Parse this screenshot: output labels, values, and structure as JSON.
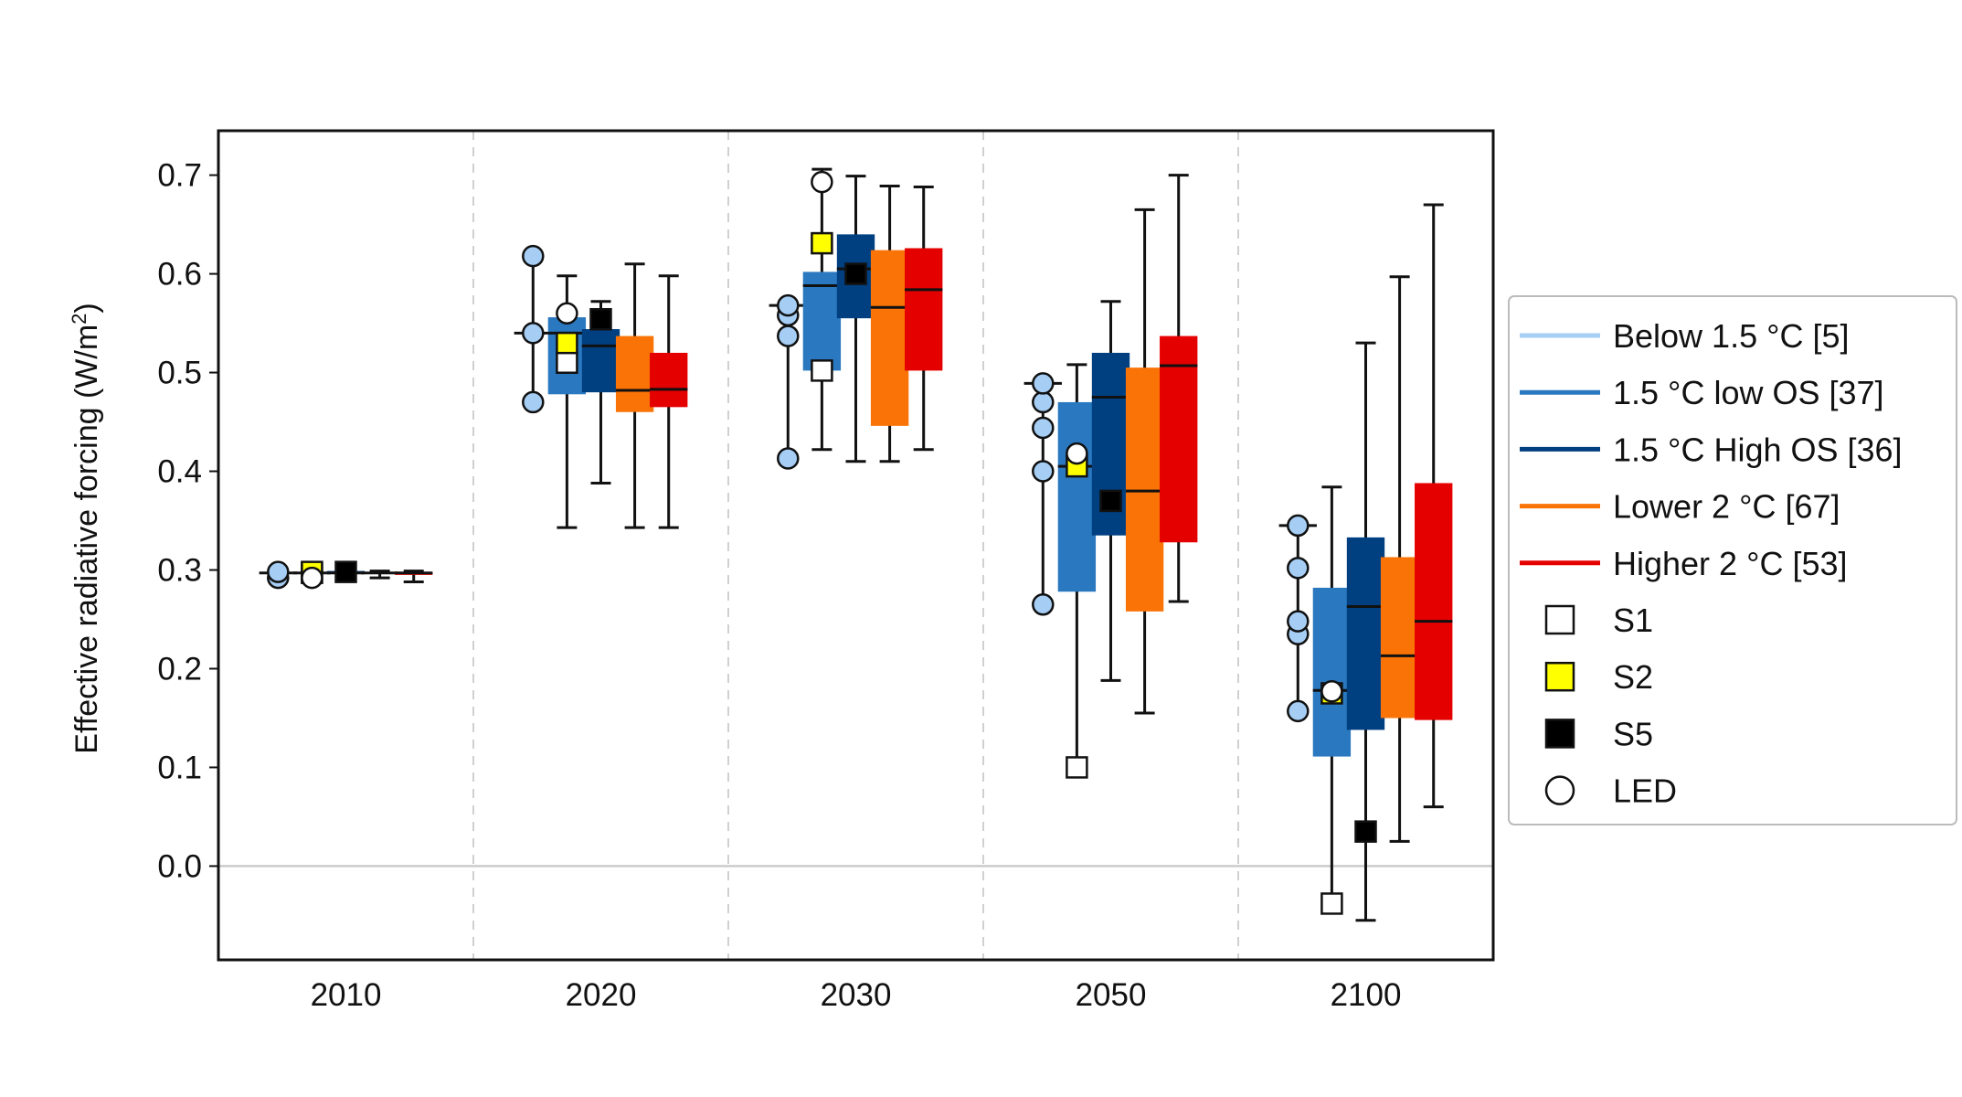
{
  "chart_data": {
    "type": "box",
    "ylabel": "Effective radiative forcing (W/m²)",
    "ylabel_main": "Effective radiative forcing (W/m",
    "ylabel_sup": "2",
    "ylabel_close": ")",
    "ylim": [
      -0.095,
      0.745
    ],
    "yticks": [
      0.0,
      0.1,
      0.2,
      0.3,
      0.4,
      0.5,
      0.6,
      0.7
    ],
    "ytick_labels": [
      "0.0",
      "0.1",
      "0.2",
      "0.3",
      "0.4",
      "0.5",
      "0.6",
      "0.7"
    ],
    "categories": [
      "2010",
      "2020",
      "2030",
      "2050",
      "2100"
    ],
    "grid": false,
    "legend_position": "right",
    "series": [
      {
        "name": "Below 1.5 °C [5]",
        "legend_label": "Below 1.5 °C [5]",
        "color": "#a6cef5"
      },
      {
        "name": "1.5 °C low OS [37]",
        "legend_label": "1.5 °C low OS [37]",
        "color": "#2a78bf"
      },
      {
        "name": "1.5 °C High OS [36]",
        "legend_label": "1.5 °C High OS [36]",
        "color": "#003f80"
      },
      {
        "name": "Lower 2 °C [67]",
        "legend_label": "Lower  2 °C [67]",
        "color": "#f97306"
      },
      {
        "name": "Higher 2 °C [53]",
        "legend_label": "Higher  2 °C [53]",
        "color": "#e50000"
      }
    ],
    "markers": [
      {
        "name": "S1",
        "shape": "square",
        "fill": "#ffffff"
      },
      {
        "name": "S2",
        "shape": "square",
        "fill": "#ffff00"
      },
      {
        "name": "S5",
        "shape": "square",
        "fill": "#000000"
      },
      {
        "name": "LED",
        "shape": "circle",
        "fill": "#ffffff"
      }
    ],
    "groups": [
      {
        "year": "2010",
        "below15_points": [
          0.292,
          0.298
        ],
        "boxes": [
          {
            "series": 0,
            "whislo": 0.292,
            "q1": 0.296,
            "med": 0.297,
            "q3": 0.298,
            "whishi": 0.3
          },
          {
            "series": 1,
            "whislo": 0.294,
            "q1": 0.296,
            "med": 0.297,
            "q3": 0.298,
            "whishi": 0.3
          },
          {
            "series": 2,
            "whislo": 0.295,
            "q1": 0.296,
            "med": 0.297,
            "q3": 0.299,
            "whishi": 0.3
          },
          {
            "series": 3,
            "whislo": 0.292,
            "q1": 0.296,
            "med": 0.297,
            "q3": 0.298,
            "whishi": 0.299
          },
          {
            "series": 4,
            "whislo": 0.288,
            "q1": 0.295,
            "med": 0.297,
            "q3": 0.298,
            "whishi": 0.299
          }
        ],
        "S1": 0.297,
        "S2": 0.298,
        "S5": 0.298,
        "LED": 0.292
      },
      {
        "year": "2020",
        "below15_points": [
          0.47,
          0.54,
          0.618
        ],
        "boxes": [
          {
            "series": 0,
            "whislo": 0.47,
            "q1": 0.47,
            "med": 0.54,
            "q3": 0.618,
            "whishi": 0.618
          },
          {
            "series": 1,
            "whislo": 0.343,
            "q1": 0.478,
            "med": 0.54,
            "q3": 0.556,
            "whishi": 0.598
          },
          {
            "series": 2,
            "whislo": 0.388,
            "q1": 0.48,
            "med": 0.527,
            "q3": 0.544,
            "whishi": 0.572
          },
          {
            "series": 3,
            "whislo": 0.343,
            "q1": 0.46,
            "med": 0.482,
            "q3": 0.537,
            "whishi": 0.61
          },
          {
            "series": 4,
            "whislo": 0.343,
            "q1": 0.465,
            "med": 0.483,
            "q3": 0.52,
            "whishi": 0.598
          }
        ],
        "S1": 0.51,
        "S2": 0.53,
        "S5": 0.554,
        "LED": 0.56
      },
      {
        "year": "2030",
        "below15_points": [
          0.413,
          0.537,
          0.558,
          0.568
        ],
        "boxes": [
          {
            "series": 0,
            "whislo": 0.413,
            "q1": 0.413,
            "med": 0.568,
            "q3": 0.568,
            "whishi": 0.568
          },
          {
            "series": 1,
            "whislo": 0.422,
            "q1": 0.502,
            "med": 0.588,
            "q3": 0.602,
            "whishi": 0.706
          },
          {
            "series": 2,
            "whislo": 0.41,
            "q1": 0.555,
            "med": 0.605,
            "q3": 0.64,
            "whishi": 0.699
          },
          {
            "series": 3,
            "whislo": 0.41,
            "q1": 0.446,
            "med": 0.566,
            "q3": 0.624,
            "whishi": 0.689
          },
          {
            "series": 4,
            "whislo": 0.422,
            "q1": 0.502,
            "med": 0.584,
            "q3": 0.626,
            "whishi": 0.688
          }
        ],
        "S1": 0.502,
        "S2": 0.631,
        "S5": 0.6,
        "LED": 0.693
      },
      {
        "year": "2050",
        "below15_points": [
          0.265,
          0.4,
          0.444,
          0.47,
          0.489
        ],
        "boxes": [
          {
            "series": 0,
            "whislo": 0.265,
            "q1": 0.265,
            "med": 0.489,
            "q3": 0.489,
            "whishi": 0.489
          },
          {
            "series": 1,
            "whislo": 0.1,
            "q1": 0.278,
            "med": 0.405,
            "q3": 0.47,
            "whishi": 0.508
          },
          {
            "series": 2,
            "whislo": 0.188,
            "q1": 0.335,
            "med": 0.475,
            "q3": 0.52,
            "whishi": 0.572
          },
          {
            "series": 3,
            "whislo": 0.155,
            "q1": 0.258,
            "med": 0.38,
            "q3": 0.505,
            "whishi": 0.665
          },
          {
            "series": 4,
            "whislo": 0.268,
            "q1": 0.328,
            "med": 0.507,
            "q3": 0.537,
            "whishi": 0.7
          }
        ],
        "S1": 0.1,
        "S2": 0.405,
        "S5": 0.37,
        "LED": 0.418
      },
      {
        "year": "2100",
        "below15_points": [
          0.157,
          0.235,
          0.248,
          0.302,
          0.345
        ],
        "boxes": [
          {
            "series": 0,
            "whislo": 0.157,
            "q1": 0.157,
            "med": 0.345,
            "q3": 0.345,
            "whishi": 0.345
          },
          {
            "series": 1,
            "whislo": -0.038,
            "q1": 0.111,
            "med": 0.178,
            "q3": 0.282,
            "whishi": 0.384
          },
          {
            "series": 2,
            "whislo": -0.055,
            "q1": 0.138,
            "med": 0.263,
            "q3": 0.333,
            "whishi": 0.53
          },
          {
            "series": 3,
            "whislo": 0.025,
            "q1": 0.15,
            "med": 0.213,
            "q3": 0.313,
            "whishi": 0.597
          },
          {
            "series": 4,
            "whislo": 0.06,
            "q1": 0.148,
            "med": 0.248,
            "q3": 0.388,
            "whishi": 0.67
          }
        ],
        "S1": -0.038,
        "S2": 0.175,
        "S5": 0.035,
        "LED": 0.177
      }
    ]
  }
}
